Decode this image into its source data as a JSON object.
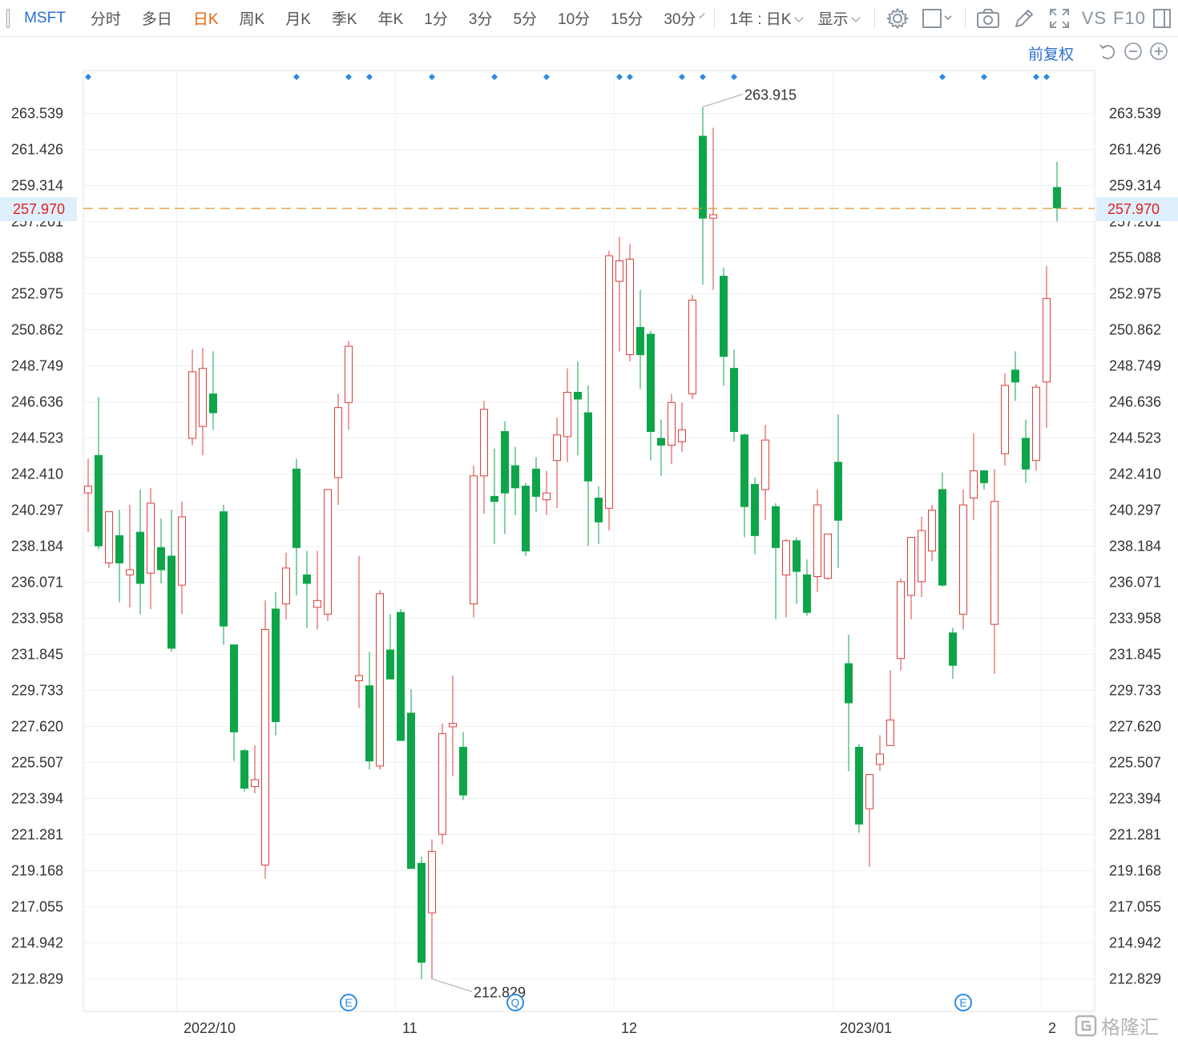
{
  "toolbar": {
    "symbol": "MSFT",
    "tabs": [
      {
        "label": "分时",
        "active": false
      },
      {
        "label": "多日",
        "active": false
      },
      {
        "label": "日K",
        "active": true
      },
      {
        "label": "周K",
        "active": false
      },
      {
        "label": "月K",
        "active": false
      },
      {
        "label": "季K",
        "active": false
      },
      {
        "label": "年K",
        "active": false
      },
      {
        "label": "1分",
        "active": false
      },
      {
        "label": "3分",
        "active": false
      },
      {
        "label": "5分",
        "active": false
      },
      {
        "label": "10分",
        "active": false
      },
      {
        "label": "15分",
        "active": false
      },
      {
        "label": "30分",
        "active": false
      }
    ],
    "range_label": "1年 : 日K",
    "display_label": "显示",
    "vs_label": "VS",
    "f10_label": "F10"
  },
  "subbar": {
    "adjust_label": "前复权"
  },
  "current_price": "257.970",
  "watermark": "格隆汇",
  "colors": {
    "up": "#d9403b",
    "down": "#0ea54a",
    "accent": "#2a6fd6",
    "price_line": "#e6932f"
  },
  "chart_data": {
    "type": "candlestick",
    "ylim": [
      211.3,
      265.4
    ],
    "y_ticks": [
      "263.539",
      "261.426",
      "259.314",
      "257.201",
      "255.088",
      "252.975",
      "250.862",
      "248.749",
      "246.636",
      "244.523",
      "242.410",
      "240.297",
      "238.184",
      "236.071",
      "233.958",
      "231.845",
      "229.733",
      "227.620",
      "225.507",
      "223.394",
      "221.281",
      "219.168",
      "217.055",
      "214.942",
      "212.829"
    ],
    "x_labels": [
      {
        "label": "2022/10",
        "index": 9
      },
      {
        "label": "11",
        "index": 30
      },
      {
        "label": "12",
        "index": 51
      },
      {
        "label": "2023/01",
        "index": 72
      },
      {
        "label": "2",
        "index": 92
      }
    ],
    "annotations": [
      {
        "label": "263.915",
        "index": 59,
        "value": 263.915
      },
      {
        "label": "212.829",
        "index": 33,
        "value": 212.829
      }
    ],
    "event_markers": [
      {
        "label": "E",
        "index": 25
      },
      {
        "label": "Q",
        "index": 41
      },
      {
        "label": "E",
        "index": 84
      }
    ],
    "top_dots": [
      0,
      20,
      25,
      27,
      33,
      39,
      44,
      51,
      52,
      57,
      59,
      62,
      82,
      86,
      91,
      92
    ],
    "candles": [
      {
        "o": 241.3,
        "h": 243.3,
        "l": 239.0,
        "c": 241.7
      },
      {
        "o": 243.5,
        "h": 246.9,
        "l": 238.0,
        "c": 238.2
      },
      {
        "o": 237.2,
        "h": 240.2,
        "l": 236.9,
        "c": 240.2
      },
      {
        "o": 238.8,
        "h": 240.3,
        "l": 234.9,
        "c": 237.2
      },
      {
        "o": 236.5,
        "h": 240.6,
        "l": 234.6,
        "c": 236.8
      },
      {
        "o": 239.0,
        "h": 241.5,
        "l": 234.2,
        "c": 236.0
      },
      {
        "o": 236.6,
        "h": 241.6,
        "l": 234.5,
        "c": 240.7
      },
      {
        "o": 238.1,
        "h": 239.8,
        "l": 236.0,
        "c": 236.8
      },
      {
        "o": 237.6,
        "h": 240.3,
        "l": 232.0,
        "c": 232.2
      },
      {
        "o": 235.9,
        "h": 240.8,
        "l": 234.2,
        "c": 239.9
      },
      {
        "o": 244.5,
        "h": 249.7,
        "l": 244.1,
        "c": 248.4
      },
      {
        "o": 245.2,
        "h": 249.8,
        "l": 243.5,
        "c": 248.6
      },
      {
        "o": 247.1,
        "h": 249.6,
        "l": 245.0,
        "c": 246.0
      },
      {
        "o": 240.2,
        "h": 240.6,
        "l": 232.4,
        "c": 233.5
      },
      {
        "o": 232.4,
        "h": 232.4,
        "l": 225.6,
        "c": 227.3
      },
      {
        "o": 226.2,
        "h": 226.3,
        "l": 223.8,
        "c": 224.0
      },
      {
        "o": 224.1,
        "h": 226.5,
        "l": 223.7,
        "c": 224.5
      },
      {
        "o": 219.5,
        "h": 235.0,
        "l": 218.7,
        "c": 233.3
      },
      {
        "o": 234.5,
        "h": 235.5,
        "l": 227.1,
        "c": 227.9
      },
      {
        "o": 234.8,
        "h": 237.8,
        "l": 233.9,
        "c": 236.9
      },
      {
        "o": 242.7,
        "h": 243.3,
        "l": 235.3,
        "c": 238.1
      },
      {
        "o": 236.5,
        "h": 237.9,
        "l": 233.4,
        "c": 236.0
      },
      {
        "o": 234.6,
        "h": 237.9,
        "l": 233.3,
        "c": 235.0
      },
      {
        "o": 234.2,
        "h": 241.5,
        "l": 233.8,
        "c": 241.5
      },
      {
        "o": 242.2,
        "h": 247.1,
        "l": 240.6,
        "c": 246.3
      },
      {
        "o": 246.6,
        "h": 250.2,
        "l": 245.0,
        "c": 249.9
      },
      {
        "o": 230.3,
        "h": 237.6,
        "l": 228.7,
        "c": 230.6
      },
      {
        "o": 230.0,
        "h": 232.0,
        "l": 225.1,
        "c": 225.6
      },
      {
        "o": 225.3,
        "h": 235.6,
        "l": 225.1,
        "c": 235.4
      },
      {
        "o": 232.1,
        "h": 234.2,
        "l": 230.8,
        "c": 230.4
      },
      {
        "o": 234.3,
        "h": 234.5,
        "l": 227.3,
        "c": 226.8
      },
      {
        "o": 228.4,
        "h": 229.8,
        "l": 219.8,
        "c": 219.3
      },
      {
        "o": 219.6,
        "h": 220.0,
        "l": 212.8,
        "c": 213.8
      },
      {
        "o": 216.7,
        "h": 221.0,
        "l": 212.8,
        "c": 220.3
      },
      {
        "o": 221.3,
        "h": 227.8,
        "l": 220.7,
        "c": 227.2
      },
      {
        "o": 227.6,
        "h": 230.6,
        "l": 224.7,
        "c": 227.8
      },
      {
        "o": 226.4,
        "h": 227.3,
        "l": 223.3,
        "c": 223.6
      },
      {
        "o": 234.8,
        "h": 242.9,
        "l": 234.0,
        "c": 242.3
      },
      {
        "o": 242.3,
        "h": 246.7,
        "l": 240.1,
        "c": 246.2
      },
      {
        "o": 241.1,
        "h": 243.9,
        "l": 238.3,
        "c": 240.8
      },
      {
        "o": 244.9,
        "h": 245.5,
        "l": 238.9,
        "c": 241.3
      },
      {
        "o": 242.9,
        "h": 244.0,
        "l": 240.0,
        "c": 241.6
      },
      {
        "o": 241.7,
        "h": 241.9,
        "l": 237.6,
        "c": 237.9
      },
      {
        "o": 242.7,
        "h": 243.4,
        "l": 240.2,
        "c": 241.1
      },
      {
        "o": 240.9,
        "h": 242.6,
        "l": 240.0,
        "c": 241.3
      },
      {
        "o": 243.2,
        "h": 245.7,
        "l": 240.4,
        "c": 244.7
      },
      {
        "o": 244.6,
        "h": 248.6,
        "l": 243.1,
        "c": 247.2
      },
      {
        "o": 247.2,
        "h": 249.0,
        "l": 243.5,
        "c": 246.8
      },
      {
        "o": 246.0,
        "h": 247.6,
        "l": 238.2,
        "c": 242.0
      },
      {
        "o": 241.0,
        "h": 241.7,
        "l": 238.3,
        "c": 239.6
      },
      {
        "o": 240.4,
        "h": 255.5,
        "l": 239.1,
        "c": 255.2
      },
      {
        "o": 253.7,
        "h": 256.3,
        "l": 249.6,
        "c": 254.9
      },
      {
        "o": 249.4,
        "h": 255.9,
        "l": 249.0,
        "c": 255.0
      },
      {
        "o": 251.0,
        "h": 253.2,
        "l": 247.4,
        "c": 249.4
      },
      {
        "o": 250.6,
        "h": 250.8,
        "l": 243.2,
        "c": 244.9
      },
      {
        "o": 244.5,
        "h": 245.6,
        "l": 242.3,
        "c": 244.1
      },
      {
        "o": 244.1,
        "h": 247.1,
        "l": 243.0,
        "c": 246.6
      },
      {
        "o": 244.3,
        "h": 246.6,
        "l": 243.7,
        "c": 245.0
      },
      {
        "o": 247.1,
        "h": 252.9,
        "l": 246.8,
        "c": 252.6
      },
      {
        "o": 262.2,
        "h": 263.915,
        "l": 253.5,
        "c": 257.4
      },
      {
        "o": 257.4,
        "h": 262.7,
        "l": 253.2,
        "c": 257.6
      },
      {
        "o": 254.0,
        "h": 254.5,
        "l": 247.6,
        "c": 249.3
      },
      {
        "o": 248.6,
        "h": 249.7,
        "l": 244.3,
        "c": 244.9
      },
      {
        "o": 244.7,
        "h": 244.8,
        "l": 238.7,
        "c": 240.5
      },
      {
        "o": 241.8,
        "h": 242.2,
        "l": 237.7,
        "c": 238.8
      },
      {
        "o": 241.5,
        "h": 245.3,
        "l": 239.7,
        "c": 244.4
      },
      {
        "o": 240.5,
        "h": 240.7,
        "l": 233.9,
        "c": 238.1
      },
      {
        "o": 236.5,
        "h": 238.6,
        "l": 234.0,
        "c": 238.5
      },
      {
        "o": 238.5,
        "h": 238.7,
        "l": 234.8,
        "c": 236.7
      },
      {
        "o": 236.5,
        "h": 237.4,
        "l": 234.1,
        "c": 234.3
      },
      {
        "o": 236.4,
        "h": 241.5,
        "l": 235.5,
        "c": 240.6
      },
      {
        "o": 236.3,
        "h": 238.8,
        "l": 236.2,
        "c": 238.9
      },
      {
        "o": 243.1,
        "h": 245.9,
        "l": 236.9,
        "c": 239.7
      },
      {
        "o": 231.3,
        "h": 233.0,
        "l": 225.0,
        "c": 229.0
      },
      {
        "o": 226.4,
        "h": 226.6,
        "l": 221.4,
        "c": 221.9
      },
      {
        "o": 222.8,
        "h": 224.6,
        "l": 219.4,
        "c": 224.8
      },
      {
        "o": 225.4,
        "h": 227.1,
        "l": 225.0,
        "c": 226.0
      },
      {
        "o": 226.5,
        "h": 230.9,
        "l": 226.5,
        "c": 228.0
      },
      {
        "o": 231.6,
        "h": 236.3,
        "l": 230.9,
        "c": 236.1
      },
      {
        "o": 235.3,
        "h": 238.3,
        "l": 233.9,
        "c": 238.7
      },
      {
        "o": 236.1,
        "h": 239.9,
        "l": 235.2,
        "c": 239.1
      },
      {
        "o": 237.9,
        "h": 240.6,
        "l": 237.3,
        "c": 240.3
      },
      {
        "o": 241.5,
        "h": 242.5,
        "l": 235.8,
        "c": 235.9
      },
      {
        "o": 233.1,
        "h": 233.4,
        "l": 230.4,
        "c": 231.2
      },
      {
        "o": 234.2,
        "h": 241.5,
        "l": 233.3,
        "c": 240.6
      },
      {
        "o": 241.0,
        "h": 244.8,
        "l": 239.7,
        "c": 242.6
      },
      {
        "o": 242.6,
        "h": 242.6,
        "l": 241.5,
        "c": 241.9
      },
      {
        "o": 233.6,
        "h": 242.7,
        "l": 230.7,
        "c": 240.8
      },
      {
        "o": 243.6,
        "h": 248.3,
        "l": 242.9,
        "c": 247.6
      },
      {
        "o": 248.5,
        "h": 249.6,
        "l": 246.7,
        "c": 247.8
      },
      {
        "o": 244.5,
        "h": 245.6,
        "l": 241.9,
        "c": 242.7
      },
      {
        "o": 243.2,
        "h": 247.7,
        "l": 242.6,
        "c": 247.5
      },
      {
        "o": 247.8,
        "h": 254.6,
        "l": 245.1,
        "c": 252.7
      },
      {
        "o": 259.2,
        "h": 260.7,
        "l": 257.2,
        "c": 258.0
      }
    ]
  }
}
